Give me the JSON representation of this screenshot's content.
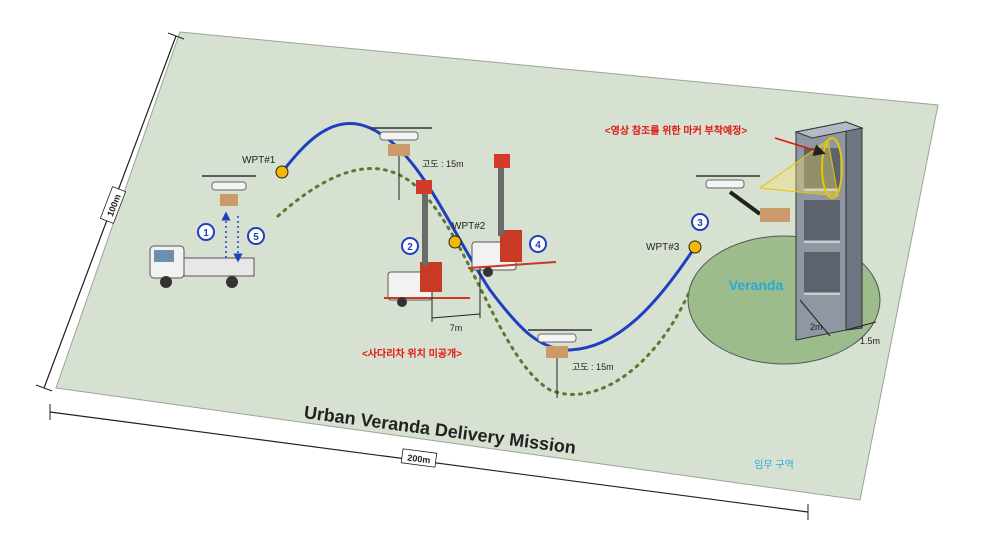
{
  "title": "Urban Veranda Delivery Mission",
  "zone_label": "임무 구역",
  "dimensions": {
    "length": "200m",
    "width": "100m"
  },
  "waypoints": [
    "WPT#1",
    "WPT#2",
    "WPT#3"
  ],
  "steps": [
    "1",
    "2",
    "3",
    "4",
    "5"
  ],
  "altitude_labels": [
    "고도 : 15m",
    "고도 : 15m"
  ],
  "truck_spacing": "7m",
  "ladder_notice": "<사다리차 위치 미공개>",
  "marker_notice": "<영상 참조를 위한 마커 부착예정>",
  "veranda": {
    "label": "Veranda",
    "width": "2m",
    "depth": "1.5m"
  },
  "colors": {
    "field": "#d7e1d2",
    "veranda_zone": "#9dbc8c",
    "flight_path": "#1f3fbf",
    "alt_path": "#5a7a32",
    "waypoint": "#f5b800",
    "warning": "#e0140e",
    "veranda_text": "#29a9dc",
    "zone_text": "#29a9dc"
  }
}
